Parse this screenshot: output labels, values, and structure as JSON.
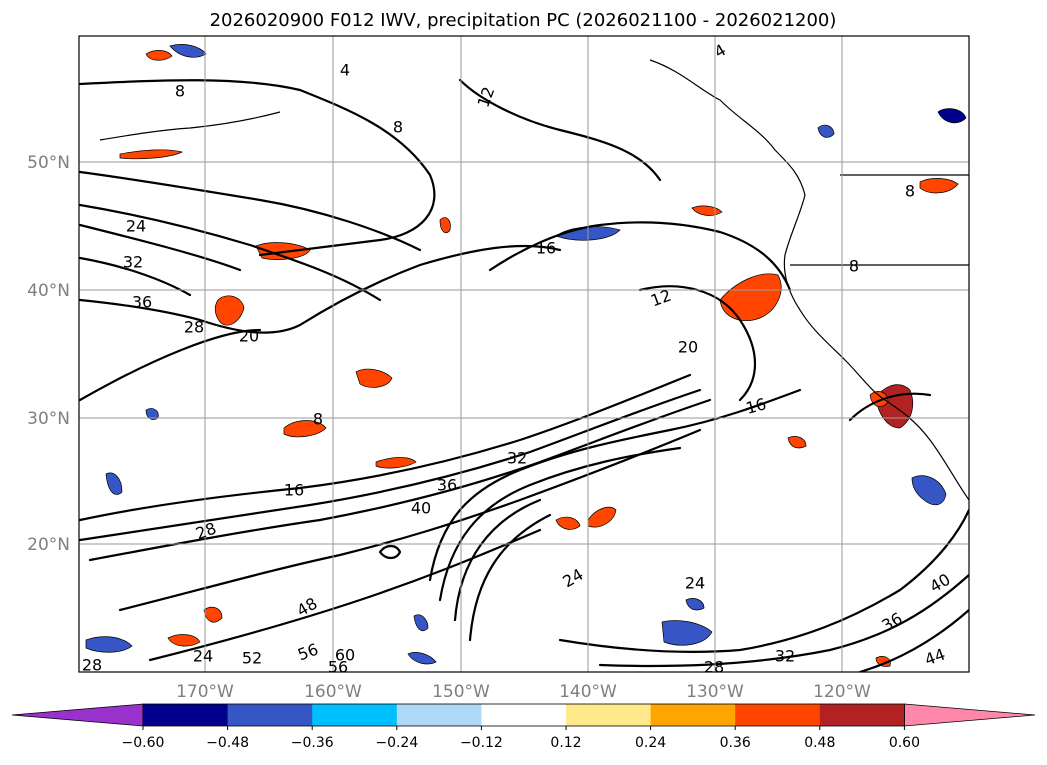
{
  "title": "2026020900 F012 IWV, precipitation PC (2026021100 - 2026021200)",
  "lat_labels": [
    "50°N",
    "40°N",
    "30°N",
    "20°N"
  ],
  "lon_labels": [
    "170°W",
    "160°W",
    "150°W",
    "140°W",
    "130°W",
    "120°W"
  ],
  "contour_labels": [
    "4",
    "8",
    "8",
    "12",
    "24",
    "32",
    "36",
    "28",
    "20",
    "16",
    "12",
    "20",
    "16",
    "8",
    "16",
    "28",
    "40",
    "36",
    "32",
    "24",
    "48",
    "56",
    "52",
    "56",
    "60",
    "28",
    "24",
    "24",
    "28",
    "32",
    "36",
    "40",
    "44",
    "8",
    "4",
    "8"
  ],
  "colorbar": {
    "ticks": [
      "−0.60",
      "−0.48",
      "−0.36",
      "−0.24",
      "−0.12",
      "0.12",
      "0.24",
      "0.36",
      "0.48",
      "0.60"
    ],
    "colors": [
      "#9932cc",
      "#00008b",
      "#3656c6",
      "#00bfff",
      "#add8f6",
      "#ffffff",
      "#ffe98a",
      "#ffa500",
      "#ff4500",
      "#b22222",
      "#ff88aa"
    ]
  }
}
